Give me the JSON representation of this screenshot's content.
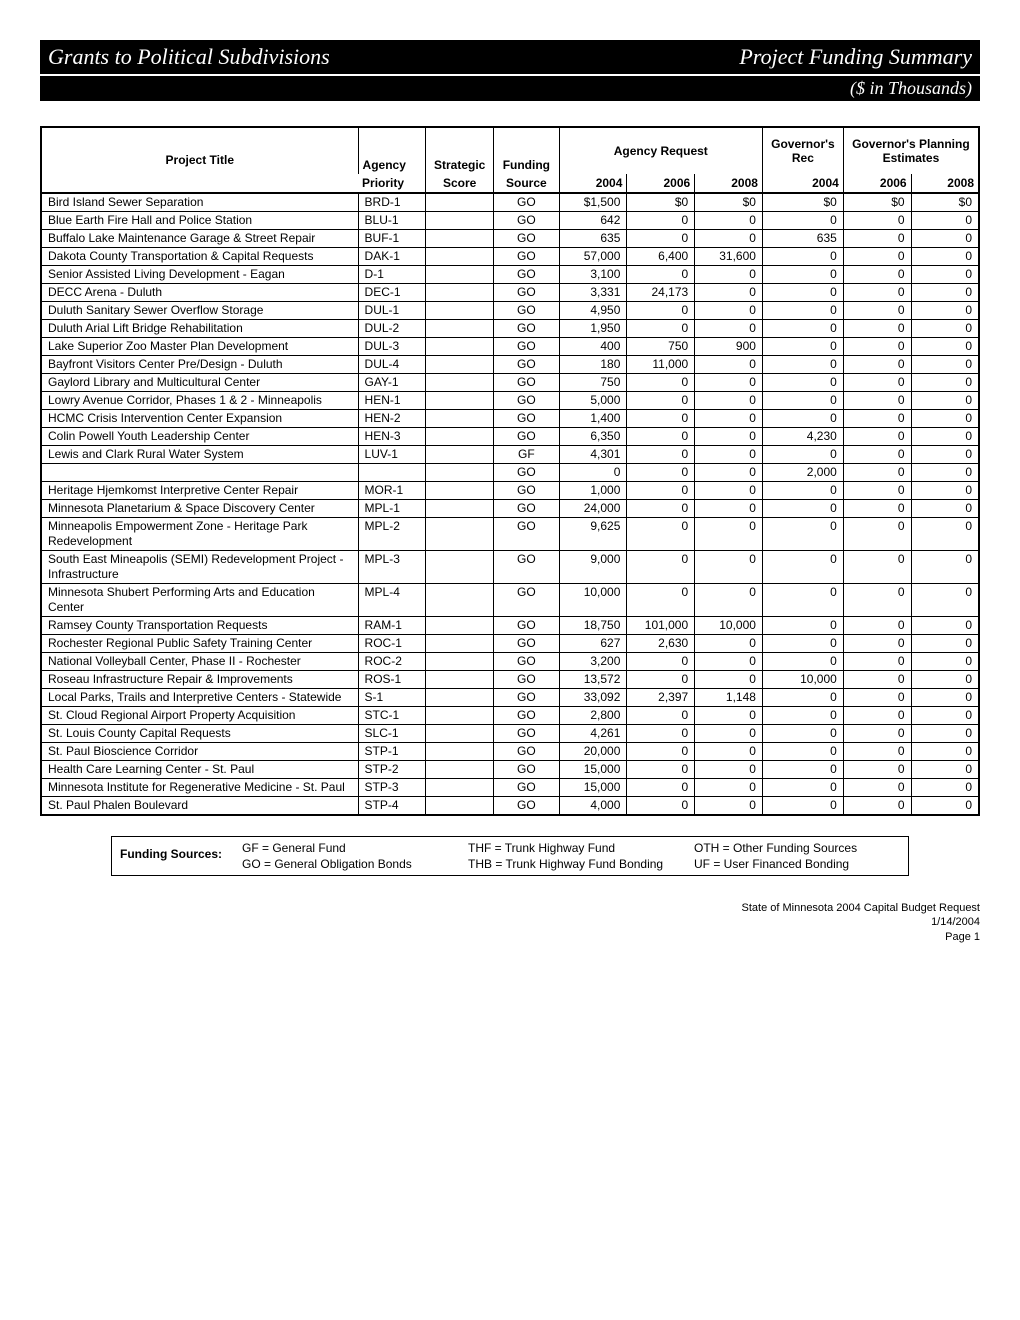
{
  "header": {
    "left_title": "Grants to Political Subdivisions",
    "right_title": "Project Funding Summary",
    "subtitle": "($ in Thousands)"
  },
  "columns": {
    "project_title": "Project Title",
    "agency_priority_top": "Agency",
    "agency_priority_bot": "Priority",
    "strategic_top": "Strategic",
    "strategic_bot": "Score",
    "funding_top": "Funding",
    "funding_bot": "Source",
    "agency_request": "Agency Request",
    "ar_2004": "2004",
    "ar_2006": "2006",
    "ar_2008": "2008",
    "gov_rec": "Governor's Rec",
    "gr_2004": "2004",
    "gov_plan": "Governor's Planning Estimates",
    "gp_2006": "2006",
    "gp_2008": "2008"
  },
  "rows": [
    {
      "title": "Bird Island Sewer Separation",
      "agency": "BRD-1",
      "score": "",
      "fund": "GO",
      "y04": "$1,500",
      "y06": "$0",
      "y08": "$0",
      "r04": "$0",
      "p06": "$0",
      "p08": "$0"
    },
    {
      "title": "Blue Earth Fire Hall and Police Station",
      "agency": "BLU-1",
      "score": "",
      "fund": "GO",
      "y04": "642",
      "y06": "0",
      "y08": "0",
      "r04": "0",
      "p06": "0",
      "p08": "0"
    },
    {
      "title": "Buffalo Lake Maintenance Garage & Street Repair",
      "agency": "BUF-1",
      "score": "",
      "fund": "GO",
      "y04": "635",
      "y06": "0",
      "y08": "0",
      "r04": "635",
      "p06": "0",
      "p08": "0"
    },
    {
      "title": "Dakota County Transportation & Capital Requests",
      "agency": "DAK-1",
      "score": "",
      "fund": "GO",
      "y04": "57,000",
      "y06": "6,400",
      "y08": "31,600",
      "r04": "0",
      "p06": "0",
      "p08": "0"
    },
    {
      "title": "Senior Assisted Living Development - Eagan",
      "agency": "D-1",
      "score": "",
      "fund": "GO",
      "y04": "3,100",
      "y06": "0",
      "y08": "0",
      "r04": "0",
      "p06": "0",
      "p08": "0"
    },
    {
      "title": "DECC Arena - Duluth",
      "agency": "DEC-1",
      "score": "",
      "fund": "GO",
      "y04": "3,331",
      "y06": "24,173",
      "y08": "0",
      "r04": "0",
      "p06": "0",
      "p08": "0"
    },
    {
      "title": "Duluth Sanitary Sewer Overflow Storage",
      "agency": "DUL-1",
      "score": "",
      "fund": "GO",
      "y04": "4,950",
      "y06": "0",
      "y08": "0",
      "r04": "0",
      "p06": "0",
      "p08": "0"
    },
    {
      "title": "Duluth Arial Lift Bridge Rehabilitation",
      "agency": "DUL-2",
      "score": "",
      "fund": "GO",
      "y04": "1,950",
      "y06": "0",
      "y08": "0",
      "r04": "0",
      "p06": "0",
      "p08": "0"
    },
    {
      "title": "Lake Superior Zoo Master Plan Development",
      "agency": "DUL-3",
      "score": "",
      "fund": "GO",
      "y04": "400",
      "y06": "750",
      "y08": "900",
      "r04": "0",
      "p06": "0",
      "p08": "0"
    },
    {
      "title": "Bayfront Visitors Center Pre/Design - Duluth",
      "agency": "DUL-4",
      "score": "",
      "fund": "GO",
      "y04": "180",
      "y06": "11,000",
      "y08": "0",
      "r04": "0",
      "p06": "0",
      "p08": "0"
    },
    {
      "title": "Gaylord Library and Multicultural Center",
      "agency": "GAY-1",
      "score": "",
      "fund": "GO",
      "y04": "750",
      "y06": "0",
      "y08": "0",
      "r04": "0",
      "p06": "0",
      "p08": "0"
    },
    {
      "title": "Lowry Avenue Corridor, Phases 1 & 2 - Minneapolis",
      "agency": "HEN-1",
      "score": "",
      "fund": "GO",
      "y04": "5,000",
      "y06": "0",
      "y08": "0",
      "r04": "0",
      "p06": "0",
      "p08": "0"
    },
    {
      "title": "HCMC Crisis Intervention Center Expansion",
      "agency": "HEN-2",
      "score": "",
      "fund": "GO",
      "y04": "1,400",
      "y06": "0",
      "y08": "0",
      "r04": "0",
      "p06": "0",
      "p08": "0"
    },
    {
      "title": "Colin Powell Youth Leadership Center",
      "agency": "HEN-3",
      "score": "",
      "fund": "GO",
      "y04": "6,350",
      "y06": "0",
      "y08": "0",
      "r04": "4,230",
      "p06": "0",
      "p08": "0"
    },
    {
      "title": "Lewis and Clark Rural Water System",
      "agency": "LUV-1",
      "score": "",
      "fund": "GF",
      "y04": "4,301",
      "y06": "0",
      "y08": "0",
      "r04": "0",
      "p06": "0",
      "p08": "0"
    },
    {
      "title": "",
      "agency": "",
      "score": "",
      "fund": "GO",
      "y04": "0",
      "y06": "0",
      "y08": "0",
      "r04": "2,000",
      "p06": "0",
      "p08": "0"
    },
    {
      "title": "Heritage Hjemkomst Interpretive Center Repair",
      "agency": "MOR-1",
      "score": "",
      "fund": "GO",
      "y04": "1,000",
      "y06": "0",
      "y08": "0",
      "r04": "0",
      "p06": "0",
      "p08": "0"
    },
    {
      "title": "Minnesota Planetarium & Space Discovery Center",
      "agency": "MPL-1",
      "score": "",
      "fund": "GO",
      "y04": "24,000",
      "y06": "0",
      "y08": "0",
      "r04": "0",
      "p06": "0",
      "p08": "0"
    },
    {
      "title": "Minneapolis Empowerment Zone - Heritage Park Redevelopment",
      "agency": "MPL-2",
      "score": "",
      "fund": "GO",
      "y04": "9,625",
      "y06": "0",
      "y08": "0",
      "r04": "0",
      "p06": "0",
      "p08": "0"
    },
    {
      "title": "South East Mineapolis (SEMI) Redevelopment Project - Infrastructure",
      "agency": "MPL-3",
      "score": "",
      "fund": "GO",
      "y04": "9,000",
      "y06": "0",
      "y08": "0",
      "r04": "0",
      "p06": "0",
      "p08": "0"
    },
    {
      "title": "Minnesota Shubert Performing Arts and Education Center",
      "agency": "MPL-4",
      "score": "",
      "fund": "GO",
      "y04": "10,000",
      "y06": "0",
      "y08": "0",
      "r04": "0",
      "p06": "0",
      "p08": "0"
    },
    {
      "title": "Ramsey County Transportation Requests",
      "agency": "RAM-1",
      "score": "",
      "fund": "GO",
      "y04": "18,750",
      "y06": "101,000",
      "y08": "10,000",
      "r04": "0",
      "p06": "0",
      "p08": "0"
    },
    {
      "title": "Rochester Regional Public Safety Training Center",
      "agency": "ROC-1",
      "score": "",
      "fund": "GO",
      "y04": "627",
      "y06": "2,630",
      "y08": "0",
      "r04": "0",
      "p06": "0",
      "p08": "0"
    },
    {
      "title": "National Volleyball Center, Phase II - Rochester",
      "agency": "ROC-2",
      "score": "",
      "fund": "GO",
      "y04": "3,200",
      "y06": "0",
      "y08": "0",
      "r04": "0",
      "p06": "0",
      "p08": "0"
    },
    {
      "title": "Roseau Infrastructure Repair & Improvements",
      "agency": "ROS-1",
      "score": "",
      "fund": "GO",
      "y04": "13,572",
      "y06": "0",
      "y08": "0",
      "r04": "10,000",
      "p06": "0",
      "p08": "0"
    },
    {
      "title": "Local Parks, Trails and Interpretive Centers - Statewide",
      "agency": "S-1",
      "score": "",
      "fund": "GO",
      "y04": "33,092",
      "y06": "2,397",
      "y08": "1,148",
      "r04": "0",
      "p06": "0",
      "p08": "0"
    },
    {
      "title": "St. Cloud Regional Airport Property Acquisition",
      "agency": "STC-1",
      "score": "",
      "fund": "GO",
      "y04": "2,800",
      "y06": "0",
      "y08": "0",
      "r04": "0",
      "p06": "0",
      "p08": "0"
    },
    {
      "title": "St. Louis County Capital Requests",
      "agency": "SLC-1",
      "score": "",
      "fund": "GO",
      "y04": "4,261",
      "y06": "0",
      "y08": "0",
      "r04": "0",
      "p06": "0",
      "p08": "0"
    },
    {
      "title": "St. Paul Bioscience Corridor",
      "agency": "STP-1",
      "score": "",
      "fund": "GO",
      "y04": "20,000",
      "y06": "0",
      "y08": "0",
      "r04": "0",
      "p06": "0",
      "p08": "0"
    },
    {
      "title": "Health Care Learning Center - St. Paul",
      "agency": "STP-2",
      "score": "",
      "fund": "GO",
      "y04": "15,000",
      "y06": "0",
      "y08": "0",
      "r04": "0",
      "p06": "0",
      "p08": "0"
    },
    {
      "title": "Minnesota Institute for Regenerative Medicine - St. Paul",
      "agency": "STP-3",
      "score": "",
      "fund": "GO",
      "y04": "15,000",
      "y06": "0",
      "y08": "0",
      "r04": "0",
      "p06": "0",
      "p08": "0"
    },
    {
      "title": "St. Paul Phalen Boulevard",
      "agency": "STP-4",
      "score": "",
      "fund": "GO",
      "y04": "4,000",
      "y06": "0",
      "y08": "0",
      "r04": "0",
      "p06": "0",
      "p08": "0"
    }
  ],
  "legend": {
    "label": "Funding Sources:",
    "items": [
      "GF = General Fund",
      "THF = Trunk Highway Fund",
      "OTH = Other Funding Sources",
      "GO = General Obligation Bonds",
      "THB = Trunk Highway Fund Bonding",
      "UF = User Financed Bonding"
    ]
  },
  "footer": {
    "line1": "State of Minnesota 2004 Capital Budget Request",
    "line2": "1/14/2004",
    "line3": "Page 1"
  },
  "style": {
    "background_color": "#ffffff",
    "text_color": "#000000",
    "bar_bg": "#000000",
    "bar_text": "#ffffff",
    "border_color": "#000000",
    "body_font_size": 12,
    "title_font_size": 22,
    "subtitle_font_size": 18,
    "title_font_family": "Times New Roman"
  }
}
